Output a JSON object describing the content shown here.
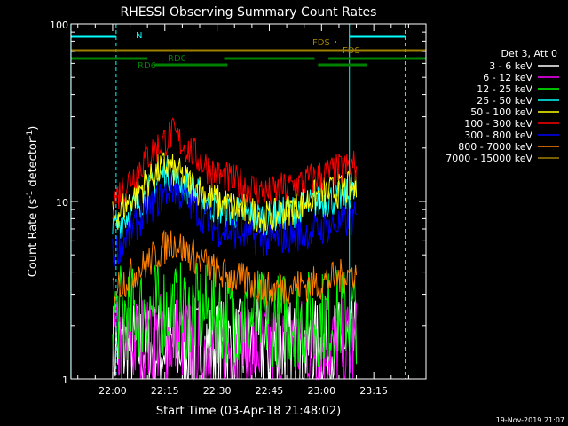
{
  "chart_data": {
    "type": "line",
    "title": "RHESSI Observing Summary Count Rates",
    "xlabel": "Start Time (03-Apr-18 21:48:02)",
    "ylabel": "Count Rate (s⁻¹ detector⁻¹)",
    "yscale": "log",
    "ylim": [
      1,
      100
    ],
    "xlim": [
      "21:48:02",
      "23:30:00"
    ],
    "x_ticks": [
      "22:00",
      "22:15",
      "22:30",
      "22:45",
      "23:00",
      "23:15"
    ],
    "y_ticks": [
      "1",
      "10",
      "100"
    ],
    "grid": false,
    "legend_title": "Det 3, Att 0",
    "legend_position": "right",
    "series": [
      {
        "name": "3 - 6 keV",
        "color": "#ffffff",
        "x": [
          "22:00",
          "22:15",
          "22:30",
          "22:45",
          "23:00",
          "23:10"
        ],
        "values": [
          1.5,
          1.5,
          1.5,
          1.5,
          1.5,
          1.5
        ]
      },
      {
        "name": "6 - 12 keV",
        "color": "#ff00ff",
        "x": [
          "22:00",
          "22:15",
          "22:30",
          "22:45",
          "23:00",
          "23:10"
        ],
        "values": [
          1.5,
          1.7,
          1.5,
          1.5,
          1.6,
          1.5
        ]
      },
      {
        "name": "12 - 25 keV",
        "color": "#00ff00",
        "x": [
          "22:00",
          "22:15",
          "22:30",
          "22:45",
          "23:00",
          "23:10"
        ],
        "values": [
          2.3,
          2.5,
          2.3,
          2.2,
          2.2,
          2.3
        ]
      },
      {
        "name": "25 - 50 keV",
        "color": "#00ffff",
        "x": [
          "22:00",
          "22:10",
          "22:15",
          "22:30",
          "22:45",
          "23:00",
          "23:10"
        ],
        "values": [
          7,
          11,
          15,
          9,
          8,
          10,
          11
        ]
      },
      {
        "name": "50 - 100 keV",
        "color": "#ffff00",
        "x": [
          "22:00",
          "22:10",
          "22:15",
          "22:30",
          "22:45",
          "23:00",
          "23:10"
        ],
        "values": [
          8,
          13,
          16,
          10,
          8,
          11,
          12
        ]
      },
      {
        "name": "100 - 300 keV",
        "color": "#ff0000",
        "x": [
          "22:00",
          "22:10",
          "22:17",
          "22:30",
          "22:45",
          "23:00",
          "23:10"
        ],
        "values": [
          10,
          18,
          24,
          14,
          11,
          14,
          16
        ]
      },
      {
        "name": "300 - 800 keV",
        "color": "#0000ff",
        "x": [
          "22:00",
          "22:10",
          "22:17",
          "22:30",
          "22:45",
          "23:00",
          "23:10"
        ],
        "values": [
          5,
          9,
          12,
          7,
          6,
          7,
          8
        ]
      },
      {
        "name": "800 - 7000 keV",
        "color": "#ff8000",
        "x": [
          "22:00",
          "22:10",
          "22:17",
          "22:30",
          "22:45",
          "23:00",
          "23:10"
        ],
        "values": [
          3.2,
          4.5,
          6,
          4,
          3.2,
          3.5,
          4
        ]
      },
      {
        "name": "7000 - 15000 keV",
        "color": "#a08000",
        "x": [],
        "values": []
      }
    ],
    "flags": [
      {
        "label": "N",
        "color": "#00ffff",
        "segments": [
          [
            "21:48",
            "22:01"
          ],
          [
            "23:08",
            "23:24"
          ]
        ]
      },
      {
        "label": "FDS",
        "color": "#a08000",
        "segments": [
          [
            "21:48",
            "23:30"
          ]
        ]
      },
      {
        "label": "RD0",
        "color": "#008000",
        "segments": [
          [
            "21:48",
            "22:10"
          ],
          [
            "22:32",
            "22:58"
          ],
          [
            "23:02",
            "23:30"
          ]
        ]
      },
      {
        "label": "RD6",
        "color": "#008000",
        "segments": [
          [
            "22:12",
            "22:33"
          ],
          [
            "22:59",
            "23:13"
          ]
        ]
      }
    ],
    "flag_labels": [
      {
        "text": "N",
        "color": "#00ffff"
      },
      {
        "text": "FDS",
        "color": "#a08000"
      },
      {
        "text": "FDS",
        "color": "#a08000"
      },
      {
        "text": "RD0",
        "color": "#008000"
      },
      {
        "text": "RD6",
        "color": "#008000"
      }
    ],
    "vertical_markers": [
      {
        "x": "21:48",
        "color": "#00ffff",
        "style": "solid"
      },
      {
        "x": "22:01",
        "color": "#00ffff",
        "style": "dashed"
      },
      {
        "x": "23:08",
        "color": "#00ffff",
        "style": "solid"
      },
      {
        "x": "23:24",
        "color": "#00ffff",
        "style": "dashed"
      }
    ]
  },
  "footer": {
    "generated": "19-Nov-2019 21:07"
  }
}
